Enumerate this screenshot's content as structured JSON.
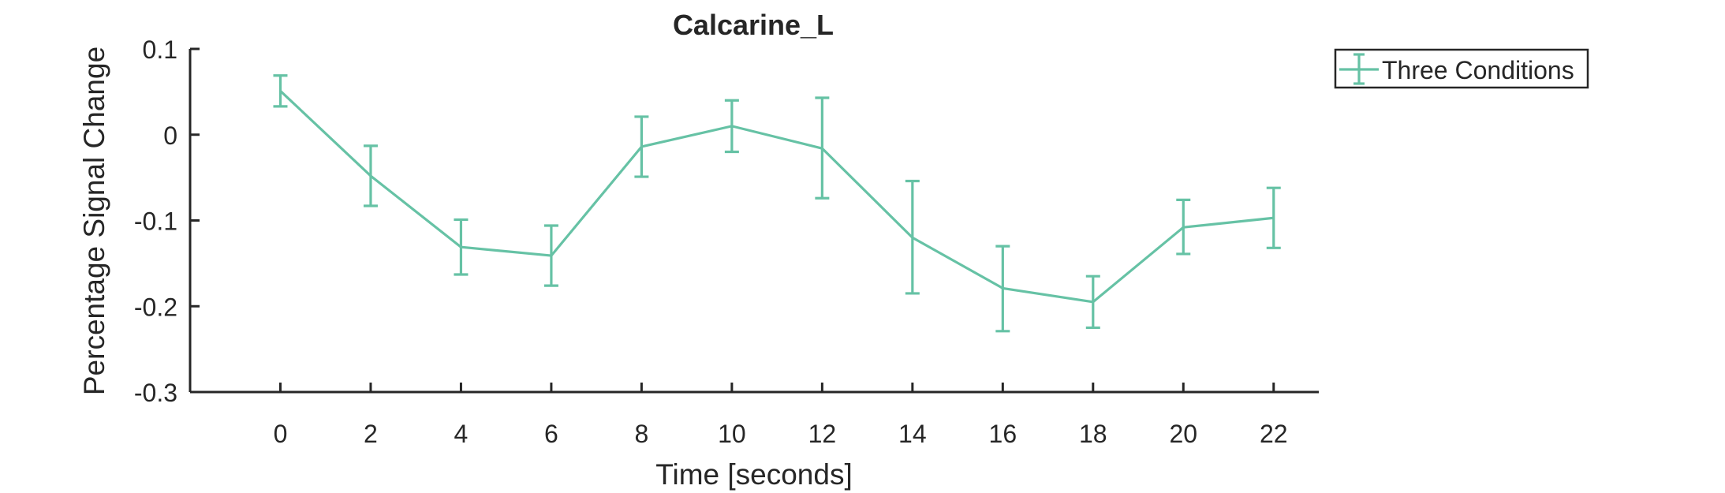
{
  "chart_data": {
    "type": "line",
    "title": "Calcarine_L",
    "xlabel": "Time [seconds]",
    "ylabel": "Percentage Signal Change",
    "xlim": [
      -2,
      23
    ],
    "ylim": [
      -0.3,
      0.1
    ],
    "x_ticks": [
      0,
      2,
      4,
      6,
      8,
      10,
      12,
      14,
      16,
      18,
      20,
      22
    ],
    "x_tick_labels": [
      "0",
      "2",
      "4",
      "6",
      "8",
      "10",
      "12",
      "14",
      "16",
      "18",
      "20",
      "22"
    ],
    "y_ticks": [
      0.1,
      0,
      -0.1,
      -0.2,
      -0.3
    ],
    "y_tick_labels": [
      "0.1",
      "0",
      "-0.1",
      "-0.2",
      "-0.3"
    ],
    "grid": false,
    "legend": {
      "position": "outside-top-right",
      "entries": [
        "Three Conditions"
      ]
    },
    "series": [
      {
        "name": "Three Conditions",
        "color": "#66c2a5",
        "x": [
          0,
          2,
          4,
          6,
          8,
          10,
          12,
          14,
          16,
          18,
          20,
          22
        ],
        "y": [
          0.051,
          -0.048,
          -0.131,
          -0.141,
          -0.014,
          0.01,
          -0.016,
          -0.12,
          -0.179,
          -0.195,
          -0.108,
          -0.097
        ],
        "error_low": [
          0.018,
          0.035,
          0.032,
          0.035,
          0.035,
          0.03,
          0.058,
          0.065,
          0.05,
          0.03,
          0.031,
          0.035
        ],
        "error_high": [
          0.018,
          0.035,
          0.032,
          0.035,
          0.035,
          0.03,
          0.059,
          0.066,
          0.049,
          0.03,
          0.032,
          0.035
        ]
      }
    ]
  }
}
